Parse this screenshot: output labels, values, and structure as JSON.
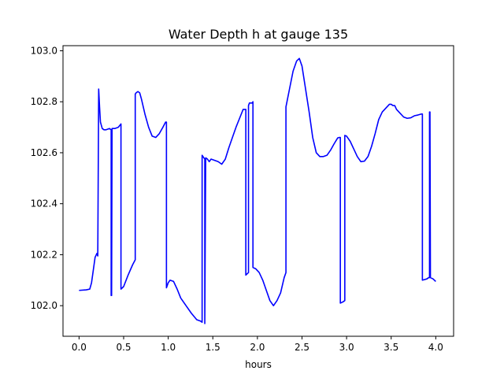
{
  "chart_data": {
    "type": "line",
    "title": "Water Depth h at gauge 135",
    "xlabel": "hours",
    "ylabel": "",
    "xlim": [
      -0.18,
      4.2
    ],
    "ylim": [
      101.88,
      103.02
    ],
    "grid": false,
    "xticks": [
      0.0,
      0.5,
      1.0,
      1.5,
      2.0,
      2.5,
      3.0,
      3.5,
      4.0
    ],
    "xtick_labels": [
      "0.0",
      "0.5",
      "1.0",
      "1.5",
      "2.0",
      "2.5",
      "3.0",
      "3.5",
      "4.0"
    ],
    "yticks": [
      102.0,
      102.2,
      102.4,
      102.6,
      102.8,
      103.0
    ],
    "ytick_labels": [
      "102.0",
      "102.2",
      "102.4",
      "102.6",
      "102.8",
      "103.0"
    ],
    "series": [
      {
        "color": "#0000ff",
        "x": [
          0.0,
          0.08,
          0.12,
          0.14,
          0.16,
          0.18,
          0.2,
          0.21,
          0.22,
          0.23,
          0.24,
          0.26,
          0.28,
          0.3,
          0.34,
          0.36,
          0.36,
          0.365,
          0.37,
          0.37,
          0.4,
          0.44,
          0.47,
          0.47,
          0.5,
          0.55,
          0.6,
          0.63,
          0.63,
          0.64,
          0.66,
          0.68,
          0.7,
          0.74,
          0.78,
          0.82,
          0.86,
          0.9,
          0.94,
          0.97,
          0.98,
          0.98,
          1.0,
          1.02,
          1.06,
          1.1,
          1.14,
          1.2,
          1.26,
          1.32,
          1.36,
          1.38,
          1.38,
          1.39,
          1.4,
          1.41,
          1.41,
          1.42,
          1.44,
          1.46,
          1.48,
          1.52,
          1.56,
          1.6,
          1.64,
          1.68,
          1.72,
          1.76,
          1.8,
          1.84,
          1.87,
          1.87,
          1.9,
          1.9,
          1.91,
          1.94,
          1.95,
          1.95,
          1.98,
          2.02,
          2.06,
          2.1,
          2.14,
          2.18,
          2.22,
          2.26,
          2.3,
          2.32,
          2.32,
          2.36,
          2.4,
          2.44,
          2.47,
          2.5,
          2.54,
          2.58,
          2.62,
          2.66,
          2.7,
          2.74,
          2.78,
          2.82,
          2.86,
          2.9,
          2.92,
          2.93,
          2.93,
          2.96,
          2.98,
          2.98,
          3.0,
          3.04,
          3.08,
          3.12,
          3.16,
          3.2,
          3.24,
          3.28,
          3.32,
          3.36,
          3.4,
          3.44,
          3.48,
          3.5,
          3.52,
          3.54,
          3.56,
          3.6,
          3.64,
          3.68,
          3.72,
          3.76,
          3.8,
          3.84,
          3.85,
          3.85,
          3.9,
          3.92,
          3.93,
          3.93,
          3.935,
          3.94,
          3.94,
          3.97,
          4.0
        ],
        "y": [
          102.06,
          102.062,
          102.065,
          102.09,
          102.14,
          102.19,
          102.205,
          102.195,
          102.85,
          102.78,
          102.72,
          102.695,
          102.69,
          102.69,
          102.695,
          102.69,
          102.04,
          102.04,
          102.69,
          102.695,
          102.695,
          102.7,
          102.713,
          102.065,
          102.075,
          102.12,
          102.16,
          102.18,
          102.83,
          102.835,
          102.84,
          102.835,
          102.81,
          102.75,
          102.7,
          102.665,
          102.66,
          102.675,
          102.7,
          102.72,
          102.72,
          102.07,
          102.09,
          102.1,
          102.095,
          102.065,
          102.03,
          102.0,
          101.97,
          101.945,
          101.94,
          101.935,
          102.59,
          102.585,
          102.58,
          102.575,
          101.93,
          102.58,
          102.575,
          102.565,
          102.575,
          102.57,
          102.565,
          102.555,
          102.575,
          102.62,
          102.66,
          102.7,
          102.735,
          102.77,
          102.77,
          102.12,
          102.13,
          102.785,
          102.795,
          102.795,
          102.8,
          102.15,
          102.145,
          102.13,
          102.1,
          102.06,
          102.02,
          102.0,
          102.02,
          102.05,
          102.11,
          102.13,
          102.78,
          102.85,
          102.92,
          102.96,
          102.97,
          102.94,
          102.85,
          102.76,
          102.66,
          102.6,
          102.585,
          102.585,
          102.59,
          102.61,
          102.635,
          102.658,
          102.66,
          102.66,
          102.01,
          102.015,
          102.02,
          102.668,
          102.665,
          102.645,
          102.615,
          102.585,
          102.565,
          102.567,
          102.585,
          102.625,
          102.675,
          102.73,
          102.76,
          102.775,
          102.79,
          102.79,
          102.785,
          102.785,
          102.77,
          102.755,
          102.74,
          102.735,
          102.737,
          102.745,
          102.748,
          102.752,
          102.752,
          102.1,
          102.105,
          102.11,
          102.11,
          102.76,
          102.76,
          102.11,
          102.11,
          102.105,
          102.095
        ]
      }
    ]
  }
}
